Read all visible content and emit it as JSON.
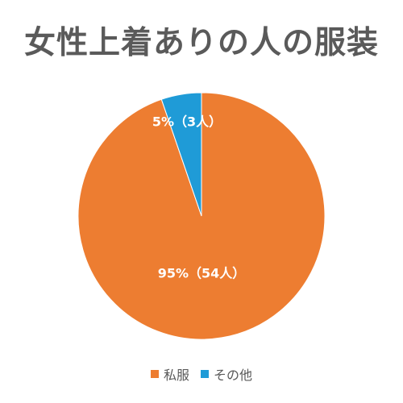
{
  "chart_data": {
    "type": "pie",
    "title": "女性上着ありの人の服装",
    "categories": [
      "私服",
      "その他"
    ],
    "values": [
      54,
      3
    ],
    "percentages": [
      95,
      5
    ],
    "data_labels": [
      "95%（54人）",
      "5%（3人）"
    ],
    "colors": [
      "#ED7D31",
      "#1F9BD7"
    ],
    "legend_position": "bottom",
    "start_angle": "top, clockwise"
  }
}
